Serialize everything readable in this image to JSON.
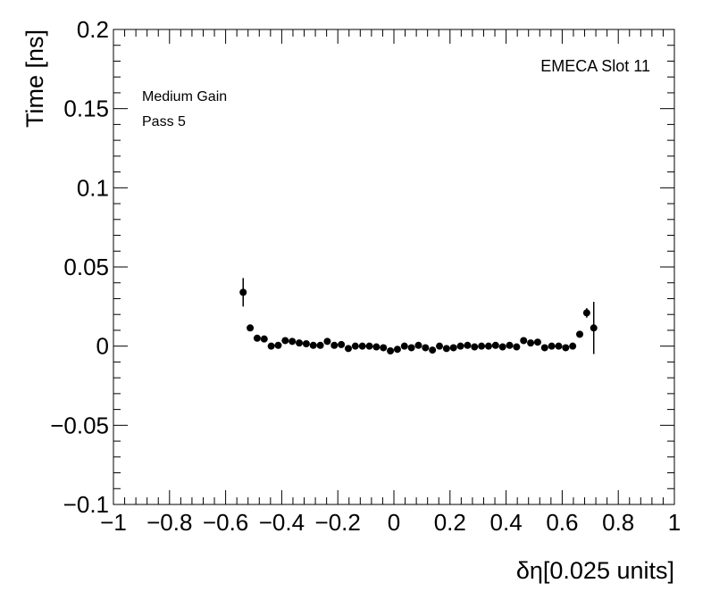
{
  "chart_data": {
    "type": "scatter",
    "title": "",
    "xlabel": "δη[0.025 units]",
    "ylabel": "Time [ns]",
    "xlim": [
      -1,
      1
    ],
    "ylim": [
      -0.1,
      0.2
    ],
    "x_ticks": [
      {
        "value": -1,
        "label": "−1"
      },
      {
        "value": -0.8,
        "label": "−0.8"
      },
      {
        "value": -0.6,
        "label": "−0.6"
      },
      {
        "value": -0.4,
        "label": "−0.4"
      },
      {
        "value": -0.2,
        "label": "−0.2"
      },
      {
        "value": 0,
        "label": "0"
      },
      {
        "value": 0.2,
        "label": "0.2"
      },
      {
        "value": 0.4,
        "label": "0.4"
      },
      {
        "value": 0.6,
        "label": "0.6"
      },
      {
        "value": 0.8,
        "label": "0.8"
      },
      {
        "value": 1,
        "label": "1"
      }
    ],
    "y_ticks": [
      {
        "value": -0.1,
        "label": "−0.1"
      },
      {
        "value": -0.05,
        "label": "−0.05"
      },
      {
        "value": 0,
        "label": "0"
      },
      {
        "value": 0.05,
        "label": "0.05"
      },
      {
        "value": 0.1,
        "label": "0.1"
      },
      {
        "value": 0.15,
        "label": "0.15"
      },
      {
        "value": 0.2,
        "label": "0.2"
      }
    ],
    "grid": false,
    "annotations": {
      "top_right": "EMECA Slot 11",
      "top_left_line1": "Medium Gain",
      "top_left_line2": "Pass 5"
    },
    "points": [
      {
        "x": -0.5375,
        "y": 0.034,
        "err": 0.009
      },
      {
        "x": -0.5125,
        "y": 0.0115,
        "err": 0.0015
      },
      {
        "x": -0.4875,
        "y": 0.005,
        "err": 0.001
      },
      {
        "x": -0.4625,
        "y": 0.0045,
        "err": 0.001
      },
      {
        "x": -0.4375,
        "y": 0.0,
        "err": 0.0008
      },
      {
        "x": -0.4125,
        "y": 0.0005,
        "err": 0.0008
      },
      {
        "x": -0.3875,
        "y": 0.0035,
        "err": 0.0008
      },
      {
        "x": -0.3625,
        "y": 0.003,
        "err": 0.0008
      },
      {
        "x": -0.3375,
        "y": 0.002,
        "err": 0.0008
      },
      {
        "x": -0.3125,
        "y": 0.0015,
        "err": 0.0008
      },
      {
        "x": -0.2875,
        "y": 0.0005,
        "err": 0.0008
      },
      {
        "x": -0.2625,
        "y": 0.0005,
        "err": 0.0008
      },
      {
        "x": -0.2375,
        "y": 0.003,
        "err": 0.0008
      },
      {
        "x": -0.2125,
        "y": 0.0005,
        "err": 0.0008
      },
      {
        "x": -0.1875,
        "y": 0.001,
        "err": 0.0008
      },
      {
        "x": -0.1625,
        "y": -0.0015,
        "err": 0.0008
      },
      {
        "x": -0.1375,
        "y": 0.0,
        "err": 0.0008
      },
      {
        "x": -0.1125,
        "y": 0.0,
        "err": 0.0008
      },
      {
        "x": -0.0875,
        "y": 0.0,
        "err": 0.0008
      },
      {
        "x": -0.0625,
        "y": -0.0005,
        "err": 0.0008
      },
      {
        "x": -0.0375,
        "y": -0.001,
        "err": 0.0008
      },
      {
        "x": -0.0125,
        "y": -0.003,
        "err": 0.0008
      },
      {
        "x": 0.0125,
        "y": -0.002,
        "err": 0.0008
      },
      {
        "x": 0.0375,
        "y": 0.0,
        "err": 0.0008
      },
      {
        "x": 0.0625,
        "y": -0.001,
        "err": 0.0008
      },
      {
        "x": 0.0875,
        "y": 0.0005,
        "err": 0.0008
      },
      {
        "x": 0.1125,
        "y": -0.001,
        "err": 0.0008
      },
      {
        "x": 0.1375,
        "y": -0.0025,
        "err": 0.0008
      },
      {
        "x": 0.1625,
        "y": 0.0,
        "err": 0.0008
      },
      {
        "x": 0.1875,
        "y": -0.0015,
        "err": 0.0008
      },
      {
        "x": 0.2125,
        "y": -0.001,
        "err": 0.0008
      },
      {
        "x": 0.2375,
        "y": 0.0,
        "err": 0.0008
      },
      {
        "x": 0.2625,
        "y": 0.0005,
        "err": 0.0008
      },
      {
        "x": 0.2875,
        "y": -0.0005,
        "err": 0.0008
      },
      {
        "x": 0.3125,
        "y": 0.0,
        "err": 0.0008
      },
      {
        "x": 0.3375,
        "y": 0.0,
        "err": 0.0008
      },
      {
        "x": 0.3625,
        "y": 0.0005,
        "err": 0.0008
      },
      {
        "x": 0.3875,
        "y": -0.0005,
        "err": 0.0008
      },
      {
        "x": 0.4125,
        "y": 0.0005,
        "err": 0.0008
      },
      {
        "x": 0.4375,
        "y": -0.0005,
        "err": 0.0008
      },
      {
        "x": 0.4625,
        "y": 0.0035,
        "err": 0.0008
      },
      {
        "x": 0.4875,
        "y": 0.002,
        "err": 0.0008
      },
      {
        "x": 0.5125,
        "y": 0.0025,
        "err": 0.0008
      },
      {
        "x": 0.5375,
        "y": -0.001,
        "err": 0.0008
      },
      {
        "x": 0.5625,
        "y": 0.0,
        "err": 0.0008
      },
      {
        "x": 0.5875,
        "y": 0.0,
        "err": 0.0008
      },
      {
        "x": 0.6125,
        "y": -0.001,
        "err": 0.0008
      },
      {
        "x": 0.6375,
        "y": 0.0,
        "err": 0.0008
      },
      {
        "x": 0.6625,
        "y": 0.0075,
        "err": 0.0015
      },
      {
        "x": 0.6875,
        "y": 0.021,
        "err": 0.003
      },
      {
        "x": 0.7125,
        "y": 0.0115,
        "err": 0.0165
      }
    ]
  },
  "colors": {
    "marker": "#000000",
    "axes": "#000000",
    "background": "#ffffff"
  }
}
